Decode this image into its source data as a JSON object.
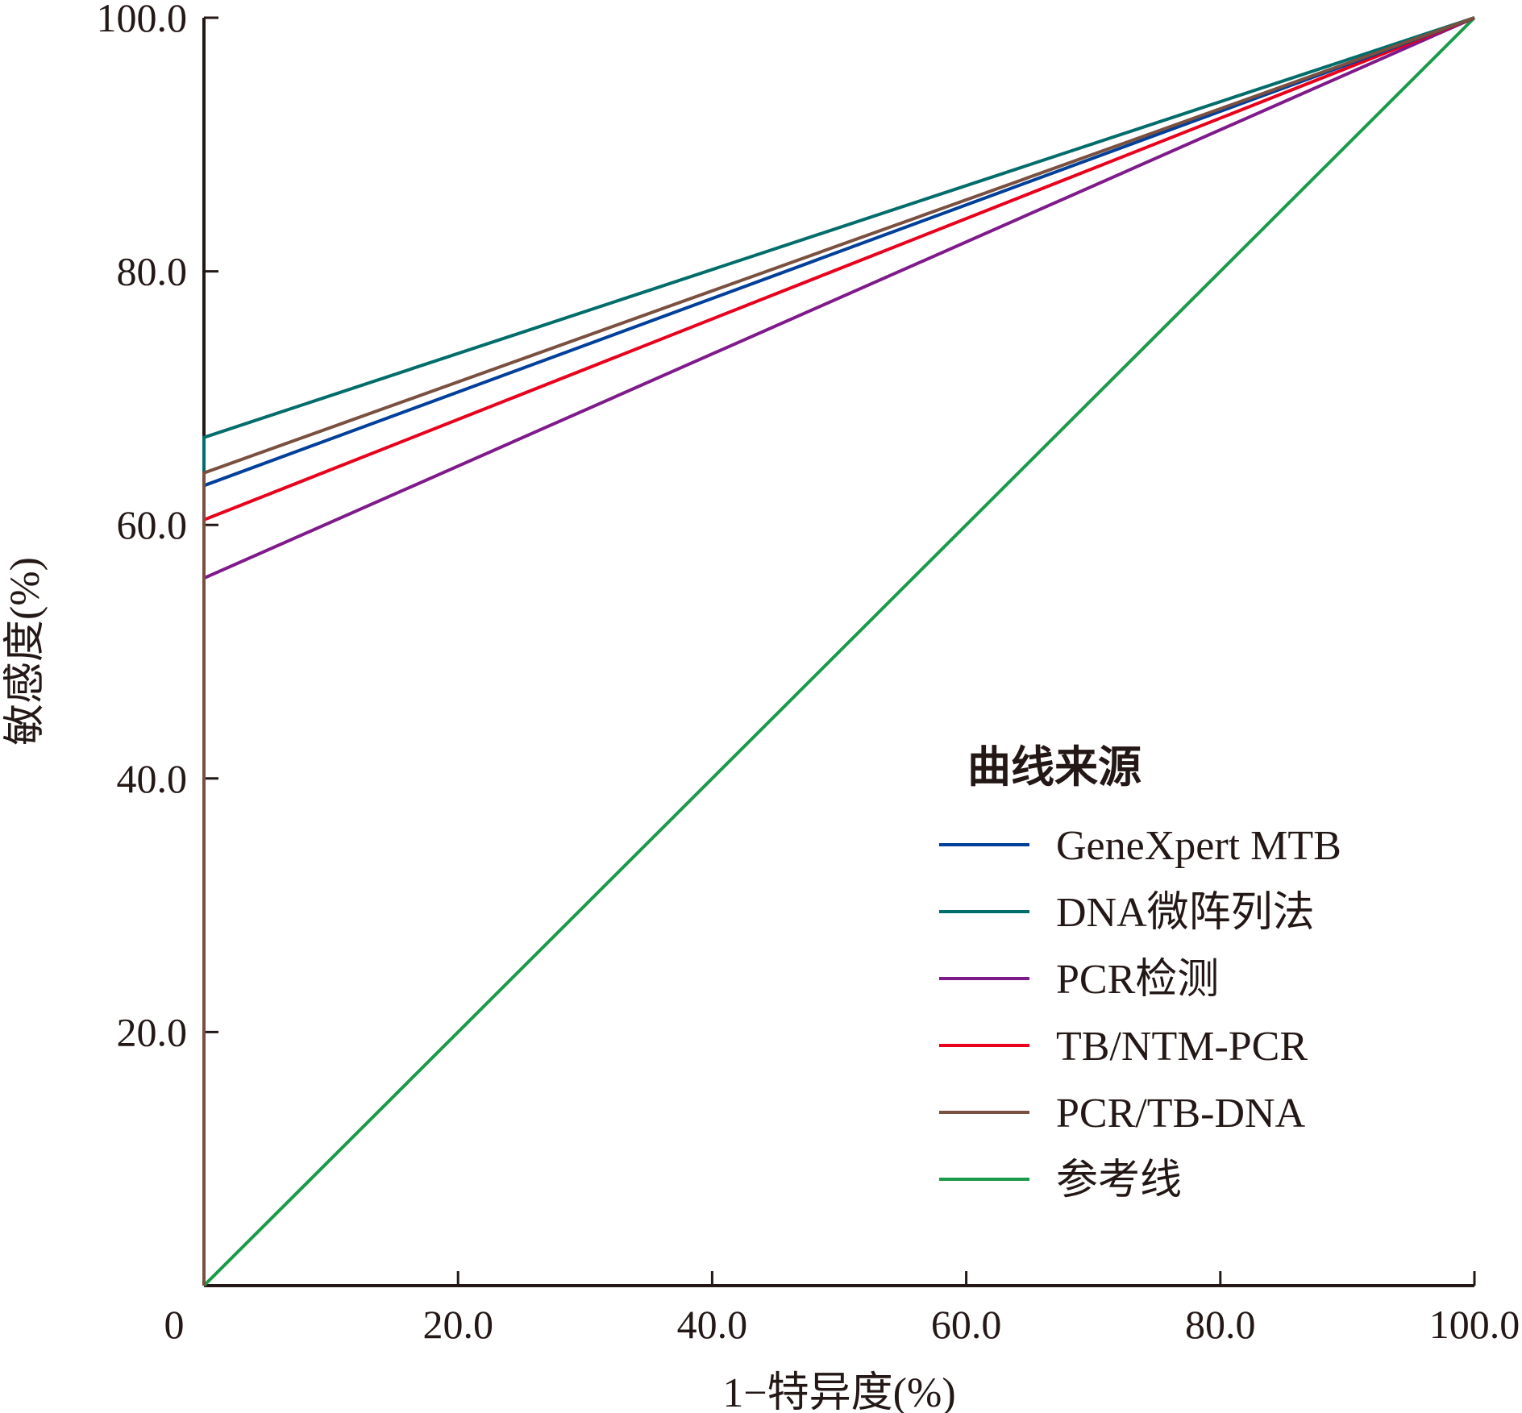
{
  "chart_data": {
    "type": "line",
    "title": "",
    "xlabel": "1−特异度(%)",
    "ylabel": "敏感度(%)",
    "xlim": [
      0,
      100
    ],
    "ylim": [
      0,
      100
    ],
    "x_ticks": [
      "0",
      "20.0",
      "40.0",
      "60.0",
      "80.0",
      "100.0"
    ],
    "x_tick_values": [
      0,
      20,
      40,
      60,
      80,
      100
    ],
    "y_ticks": [
      "20.0",
      "40.0",
      "60.0",
      "80.0",
      "100.0"
    ],
    "y_tick_values": [
      20,
      40,
      60,
      80,
      100
    ],
    "grid": false,
    "legend_title": "曲线来源",
    "legend_position": "bottom-right",
    "series": [
      {
        "name": "参考线",
        "color": "#1a9a4a",
        "x": [
          0,
          100
        ],
        "y": [
          0,
          100
        ]
      },
      {
        "name": "PCR检测",
        "color": "#7f1a8a",
        "x": [
          0,
          0,
          100
        ],
        "y": [
          0,
          55.8,
          100
        ]
      },
      {
        "name": "TB/NTM-PCR",
        "color": "#e8001c",
        "x": [
          0,
          0,
          100
        ],
        "y": [
          0,
          60.4,
          100
        ]
      },
      {
        "name": "GeneXpert MTB",
        "color": "#003f9a",
        "x": [
          0,
          0,
          100
        ],
        "y": [
          0,
          63.1,
          100
        ]
      },
      {
        "name": "DNA微阵列法",
        "color": "#006d6a",
        "x": [
          0,
          0,
          100
        ],
        "y": [
          0,
          66.9,
          100
        ]
      },
      {
        "name": "PCR/TB-DNA",
        "color": "#7a5040",
        "x": [
          0,
          0,
          100
        ],
        "y": [
          0,
          64.1,
          100
        ]
      }
    ],
    "legend_order": [
      "GeneXpert MTB",
      "DNA微阵列法",
      "PCR检测",
      "TB/NTM-PCR",
      "PCR/TB-DNA",
      "参考线"
    ]
  }
}
